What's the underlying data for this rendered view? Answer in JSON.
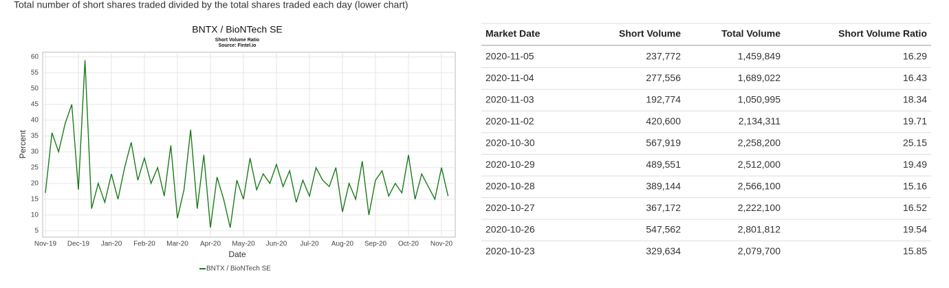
{
  "header": {
    "title": "Total number of short shares traded divided by the total shares traded each day (lower chart)"
  },
  "chart_data": {
    "type": "line",
    "title": "BNTX / BioNTech SE",
    "subtitle": "Short Volume Ratio",
    "source": "Source: Fintel.io",
    "x_label": "Date",
    "y_label": "Percent",
    "categories": [
      "Nov-19",
      null,
      null,
      null,
      null,
      "Dec-19",
      null,
      null,
      null,
      null,
      "Jan-20",
      null,
      null,
      null,
      null,
      "Feb-20",
      null,
      null,
      null,
      null,
      "Mar-20",
      null,
      null,
      null,
      null,
      "Apr-20",
      null,
      null,
      null,
      null,
      "May-20",
      null,
      null,
      null,
      null,
      "Jun-20",
      null,
      null,
      null,
      null,
      "Jul-20",
      null,
      null,
      null,
      null,
      "Aug-20",
      null,
      null,
      null,
      null,
      "Sep-20",
      null,
      null,
      null,
      null,
      "Oct-20",
      null,
      null,
      null,
      null,
      "Nov-20",
      null
    ],
    "series": [
      {
        "name": "BNTX / BioNTech SE",
        "color": "#1a7a1a",
        "values": [
          17,
          36,
          30,
          39,
          45,
          18,
          59,
          12,
          20,
          14,
          23,
          15,
          25,
          33,
          21,
          28,
          20,
          25,
          16,
          32,
          9,
          18,
          37,
          12,
          29,
          6,
          22,
          15,
          6,
          21,
          15,
          28,
          18,
          23,
          20,
          26,
          19,
          24,
          14,
          21,
          16,
          25,
          21,
          19,
          25,
          11,
          20,
          15,
          27,
          10,
          21,
          24,
          16,
          20,
          17,
          29,
          15,
          23,
          19,
          15,
          25,
          16
        ]
      }
    ],
    "ylim": [
      3,
      61.5
    ],
    "yticks": [
      5,
      10,
      15,
      20,
      25,
      30,
      35,
      40,
      45,
      50,
      55,
      60
    ],
    "grid": true
  },
  "table": {
    "columns": [
      "Market Date",
      "Short Volume",
      "Total Volume",
      "Short Volume Ratio"
    ],
    "rows": [
      [
        "2020-11-05",
        "237,772",
        "1,459,849",
        "16.29"
      ],
      [
        "2020-11-04",
        "277,556",
        "1,689,022",
        "16.43"
      ],
      [
        "2020-11-03",
        "192,774",
        "1,050,995",
        "18.34"
      ],
      [
        "2020-11-02",
        "420,600",
        "2,134,311",
        "19.71"
      ],
      [
        "2020-10-30",
        "567,919",
        "2,258,200",
        "25.15"
      ],
      [
        "2020-10-29",
        "489,551",
        "2,512,000",
        "19.49"
      ],
      [
        "2020-10-28",
        "389,144",
        "2,566,100",
        "15.16"
      ],
      [
        "2020-10-27",
        "367,172",
        "2,222,100",
        "16.52"
      ],
      [
        "2020-10-26",
        "547,562",
        "2,801,812",
        "19.54"
      ],
      [
        "2020-10-23",
        "329,634",
        "2,079,700",
        "15.85"
      ]
    ]
  }
}
